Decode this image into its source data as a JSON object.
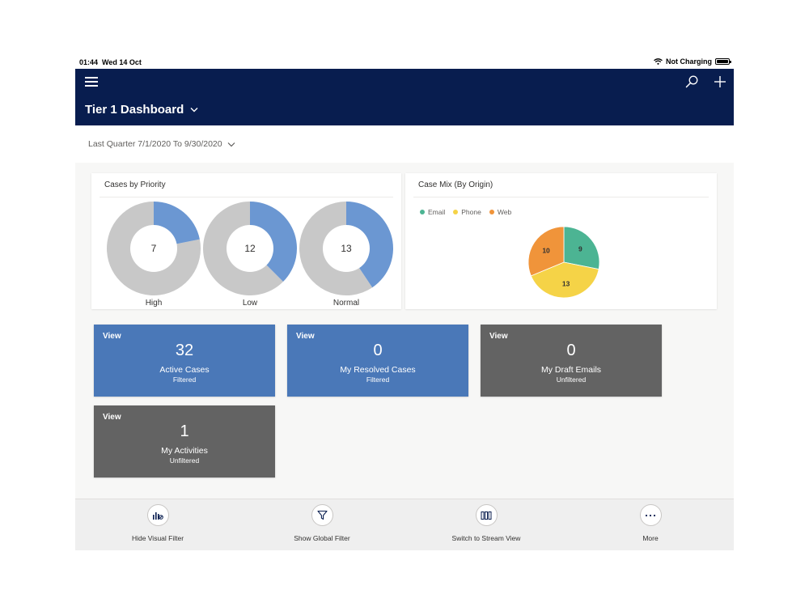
{
  "status_bar": {
    "time": "01:44",
    "date": "Wed 14 Oct",
    "charging": "Not Charging"
  },
  "header": {
    "title": "Tier 1 Dashboard",
    "bg_color": "#081d4f",
    "icons": [
      "hamburger-menu-icon",
      "search-icon",
      "add-icon"
    ]
  },
  "filter": {
    "label": "Last Quarter 7/1/2020 To 9/30/2020"
  },
  "priority_card": {
    "title": "Cases by Priority"
  },
  "origin_card": {
    "title": "Case Mix (By Origin)"
  },
  "chart_data": [
    {
      "type": "pie",
      "variant": "donut",
      "title": "Cases by Priority",
      "categories": [
        "High",
        "Low",
        "Normal"
      ],
      "values": [
        7,
        12,
        13
      ],
      "total": 32,
      "colors": {
        "highlight": "#6b97d2",
        "remainder": "#c8c8c8"
      }
    },
    {
      "type": "pie",
      "title": "Case Mix (By Origin)",
      "categories": [
        "Email",
        "Phone",
        "Web"
      ],
      "values": [
        9,
        13,
        10
      ],
      "colors": [
        "#4cb493",
        "#f5d347",
        "#f0943a"
      ],
      "legend": "top-left"
    }
  ],
  "tiles": [
    {
      "view": "View",
      "count": "32",
      "label": "Active Cases",
      "sub": "Filtered",
      "color": "#4a78b8"
    },
    {
      "view": "View",
      "count": "0",
      "label": "My Resolved Cases",
      "sub": "Filtered",
      "color": "#4a78b8"
    },
    {
      "view": "View",
      "count": "0",
      "label": "My Draft Emails",
      "sub": "Unfiltered",
      "color": "#636363"
    },
    {
      "view": "View",
      "count": "1",
      "label": "My Activities",
      "sub": "Unfiltered",
      "color": "#636363"
    }
  ],
  "bottom_bar": {
    "actions": [
      {
        "label": "Hide Visual Filter",
        "icon": "visual-filter-icon"
      },
      {
        "label": "Show Global Filter",
        "icon": "funnel-icon"
      },
      {
        "label": "Switch to Stream View",
        "icon": "columns-icon"
      },
      {
        "label": "More",
        "icon": "more-icon"
      }
    ]
  }
}
